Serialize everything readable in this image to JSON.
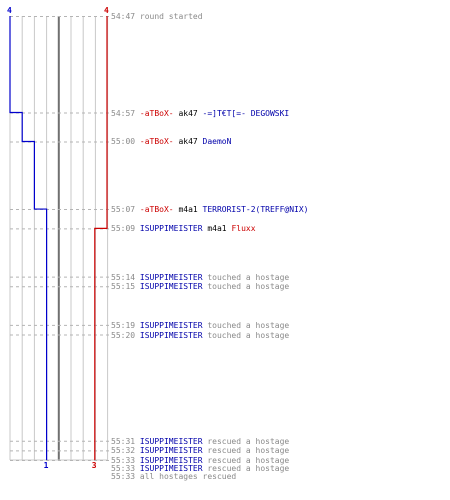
{
  "scores": {
    "top_left": "4",
    "top_right": "4",
    "bottom_blue": "1",
    "bottom_red": "3"
  },
  "colors": {
    "blue": "#0000cc",
    "red": "#cc0000",
    "grid": "#c8c8c8",
    "center_line": "#707070",
    "dash": "#b4b4b4",
    "time_text": "#8a8a8a"
  },
  "timeline": {
    "start": "54:47",
    "end": "55:33"
  },
  "events": [
    {
      "time": "54:47",
      "parts": [
        {
          "text": "round started",
          "color": "gray"
        }
      ]
    },
    {
      "time": "54:57",
      "parts": [
        {
          "text": "-aTBoX-",
          "color": "red"
        },
        {
          "text": " ak47 ",
          "color": "black"
        },
        {
          "text": "-=]T€T[=- DEGOWSKI",
          "color": "blue"
        }
      ]
    },
    {
      "time": "55:00",
      "parts": [
        {
          "text": "-aTBoX-",
          "color": "red"
        },
        {
          "text": " ak47 ",
          "color": "black"
        },
        {
          "text": "DaemoN",
          "color": "blue"
        }
      ]
    },
    {
      "time": "55:07",
      "parts": [
        {
          "text": "-aTBoX-",
          "color": "red"
        },
        {
          "text": " m4a1 ",
          "color": "black"
        },
        {
          "text": "TERRORIST-2(TREFF@NIX)",
          "color": "blue"
        }
      ]
    },
    {
      "time": "55:09",
      "parts": [
        {
          "text": "ISUPPIMEISTER",
          "color": "blue"
        },
        {
          "text": " m4a1 ",
          "color": "black"
        },
        {
          "text": "Fluxx",
          "color": "red"
        }
      ]
    },
    {
      "time": "55:14",
      "parts": [
        {
          "text": "ISUPPIMEISTER",
          "color": "blue"
        },
        {
          "text": " touched a hostage",
          "color": "gray"
        }
      ]
    },
    {
      "time": "55:15",
      "parts": [
        {
          "text": "ISUPPIMEISTER",
          "color": "blue"
        },
        {
          "text": " touched a hostage",
          "color": "gray"
        }
      ]
    },
    {
      "time": "55:19",
      "parts": [
        {
          "text": "ISUPPIMEISTER",
          "color": "blue"
        },
        {
          "text": " touched a hostage",
          "color": "gray"
        }
      ]
    },
    {
      "time": "55:20",
      "parts": [
        {
          "text": "ISUPPIMEISTER",
          "color": "blue"
        },
        {
          "text": " touched a hostage",
          "color": "gray"
        }
      ]
    },
    {
      "time": "55:31",
      "parts": [
        {
          "text": "ISUPPIMEISTER",
          "color": "blue"
        },
        {
          "text": " rescued a hostage",
          "color": "gray"
        }
      ]
    },
    {
      "time": "55:32",
      "parts": [
        {
          "text": "ISUPPIMEISTER",
          "color": "blue"
        },
        {
          "text": " rescued a hostage",
          "color": "gray"
        }
      ]
    },
    {
      "time": "55:33",
      "parts": [
        {
          "text": "ISUPPIMEISTER",
          "color": "blue"
        },
        {
          "text": " rescued a hostage",
          "color": "gray"
        }
      ]
    },
    {
      "time": "55:33",
      "parts": [
        {
          "text": "ISUPPIMEISTER",
          "color": "blue"
        },
        {
          "text": " rescued a hostage",
          "color": "gray"
        }
      ]
    },
    {
      "time": "55:33",
      "parts": [
        {
          "text": "all hostages rescued",
          "color": "gray"
        }
      ]
    }
  ],
  "chart_data": {
    "type": "line",
    "x_unit": "players alive",
    "y_unit": "round time",
    "series": [
      {
        "color": "blue",
        "steps": [
          {
            "time": "54:47",
            "alive": 4
          },
          {
            "time": "54:57",
            "alive": 3
          },
          {
            "time": "55:00",
            "alive": 2
          },
          {
            "time": "55:07",
            "alive": 1
          }
        ]
      },
      {
        "color": "red",
        "steps": [
          {
            "time": "54:47",
            "alive": 4
          },
          {
            "time": "55:09",
            "alive": 3
          }
        ]
      }
    ]
  }
}
